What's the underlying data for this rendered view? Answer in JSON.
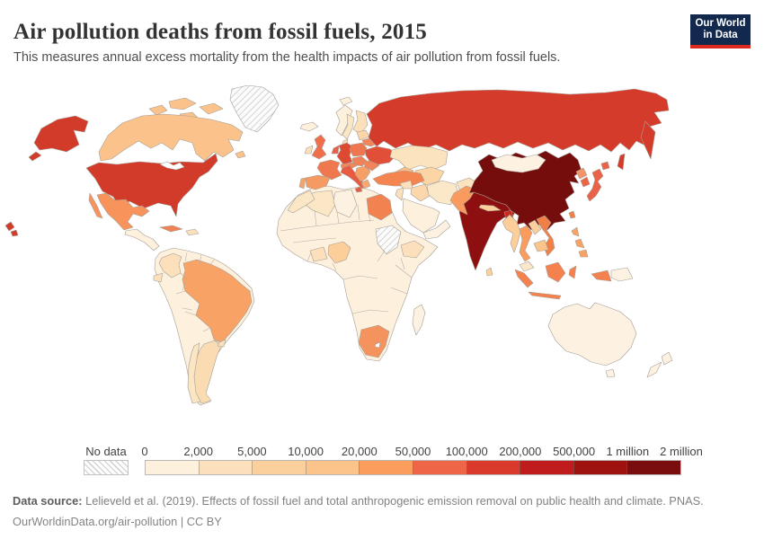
{
  "header": {
    "title": "Air pollution deaths from fossil fuels, 2015",
    "subtitle": "This measures annual excess mortality from the health impacts of air pollution from fossil fuels.",
    "logo": {
      "line1": "Our World",
      "line2": "in Data",
      "bg_color": "#12294d",
      "accent_color": "#dc2a20"
    }
  },
  "footer": {
    "source_label": "Data source:",
    "source_text": " Lelieveld et al. (2019). Effects of fossil fuel and total anthropogenic emission removal on public health and climate. PNAS.",
    "license_text": "OurWorldinData.org/air-pollution | CC BY"
  },
  "chart_data": {
    "type": "choropleth_map",
    "title": "Air pollution deaths from fossil fuels, 2015",
    "metric": "Annual excess mortality from the health impacts of air pollution from fossil fuels",
    "year": 2015,
    "unit": "deaths",
    "legend": {
      "no_data_label": "No data",
      "tick_labels": [
        "0",
        "2,000",
        "5,000",
        "10,000",
        "20,000",
        "50,000",
        "100,000",
        "200,000",
        "500,000",
        "1 million",
        "2 million"
      ],
      "bin_colors": [
        "#fdf0dd",
        "#fbe0bb",
        "#fbd09c",
        "#fcc48a",
        "#fa9d5d",
        "#ee6548",
        "#d93a2b",
        "#c01b1d",
        "#9e1310",
        "#7a0d0d"
      ],
      "no_data_pattern": "diagonal-hatch"
    },
    "countries": [
      {
        "id": "united-states",
        "name": "United States",
        "range": "100,000-200,000",
        "color": "#d23b2a"
      },
      {
        "id": "canada",
        "name": "Canada",
        "range": "10,000-20,000",
        "color": "#fbc38b"
      },
      {
        "id": "greenland",
        "name": "Greenland",
        "range": "No data",
        "color": "hatch"
      },
      {
        "id": "mexico",
        "name": "Mexico",
        "range": "20,000-50,000",
        "color": "#f9935c"
      },
      {
        "id": "central-america",
        "name": "Central America",
        "range": "0-2,000",
        "color": "#fdf0dd"
      },
      {
        "id": "cuba",
        "name": "Cuba",
        "range": "20,000-50,000",
        "color": "#f08354"
      },
      {
        "id": "hispaniola",
        "name": "Haiti and Dominican Republic",
        "range": "2,000-5,000",
        "color": "#fbe0bb"
      },
      {
        "id": "south-america-other",
        "name": "Peru, Bolivia, Venezuela, Paraguay, Guyanas",
        "range": "0-2,000",
        "color": "#fdf0dd"
      },
      {
        "id": "brazil",
        "name": "Brazil",
        "range": "20,000-50,000",
        "color": "#f9a266"
      },
      {
        "id": "argentina",
        "name": "Argentina",
        "range": "5,000-10,000",
        "color": "#fbdcb2"
      },
      {
        "id": "chile",
        "name": "Chile",
        "range": "2,000-5,000",
        "color": "#fbe6c4"
      },
      {
        "id": "uruguay",
        "name": "Uruguay",
        "range": "2,000-5,000",
        "color": "#fbe0bb"
      },
      {
        "id": "colombia",
        "name": "Colombia",
        "range": "2,000-5,000",
        "color": "#fbe0bb"
      },
      {
        "id": "ecuador",
        "name": "Ecuador",
        "range": "2,000-5,000",
        "color": "#fbe0bb"
      },
      {
        "id": "iceland",
        "name": "Iceland",
        "range": "0-2,000",
        "color": "#fdf0dd"
      },
      {
        "id": "united-kingdom",
        "name": "United Kingdom",
        "range": "50,000-100,000",
        "color": "#ef6f4d"
      },
      {
        "id": "ireland",
        "name": "Ireland",
        "range": "2,000-5,000",
        "color": "#fbe0bb"
      },
      {
        "id": "norway",
        "name": "Norway",
        "range": "0-2,000",
        "color": "#fdf0dd"
      },
      {
        "id": "sweden",
        "name": "Sweden",
        "range": "2,000-5,000",
        "color": "#fbe6c4"
      },
      {
        "id": "finland",
        "name": "Finland",
        "range": "2,000-5,000",
        "color": "#fbe0bb"
      },
      {
        "id": "denmark",
        "name": "Denmark",
        "range": "2,000-5,000",
        "color": "#fbdcb2"
      },
      {
        "id": "france",
        "name": "France",
        "range": "20,000-50,000",
        "color": "#f0784f"
      },
      {
        "id": "spain",
        "name": "Spain",
        "range": "20,000-50,000",
        "color": "#f59a62"
      },
      {
        "id": "portugal",
        "name": "Portugal",
        "range": "5,000-10,000",
        "color": "#f5a36b"
      },
      {
        "id": "germany",
        "name": "Germany",
        "range": "50,000-100,000",
        "color": "#dc4a31"
      },
      {
        "id": "benelux",
        "name": "Netherlands and Belgium",
        "range": "20,000-50,000",
        "color": "#ea5f43"
      },
      {
        "id": "italy",
        "name": "Italy",
        "range": "50,000-100,000",
        "color": "#e85b41"
      },
      {
        "id": "swiss-austria",
        "name": "Switzerland and Austria",
        "range": "10,000-20,000",
        "color": "#f4865a"
      },
      {
        "id": "poland",
        "name": "Poland",
        "range": "20,000-50,000",
        "color": "#ef764f"
      },
      {
        "id": "czech-hungary",
        "name": "Czechia, Slovakia, Hungary",
        "range": "20,000-50,000",
        "color": "#f0825a"
      },
      {
        "id": "balkans",
        "name": "Balkans",
        "range": "10,000-20,000",
        "color": "#f6a066"
      },
      {
        "id": "greece",
        "name": "Greece",
        "range": "5,000-10,000",
        "color": "#f6aa72"
      },
      {
        "id": "romania",
        "name": "Romania",
        "range": "20,000-50,000",
        "color": "#f0845a"
      },
      {
        "id": "ukraine",
        "name": "Ukraine",
        "range": "50,000-100,000",
        "color": "#e14f38"
      },
      {
        "id": "belarus",
        "name": "Belarus",
        "range": "10,000-20,000",
        "color": "#f2845c"
      },
      {
        "id": "baltics",
        "name": "Baltic states",
        "range": "5,000-10,000",
        "color": "#fbd6a8"
      },
      {
        "id": "russia",
        "name": "Russia",
        "range": "200,000-500,000",
        "color": "#d53b2b"
      },
      {
        "id": "turkey",
        "name": "Turkey",
        "range": "20,000-50,000",
        "color": "#f58550"
      },
      {
        "id": "kazakhstan",
        "name": "Kazakhstan",
        "range": "2,000-5,000",
        "color": "#fbe3bd"
      },
      {
        "id": "central-asia",
        "name": "Central Asia",
        "range": "5,000-10,000",
        "color": "#fbd6a4"
      },
      {
        "id": "caucasus",
        "name": "Caucasus",
        "range": "10,000-20,000",
        "color": "#f9c089"
      },
      {
        "id": "syria",
        "name": "Syria",
        "range": "2,000-5,000",
        "color": "#fbe0bb"
      },
      {
        "id": "iraq",
        "name": "Iraq",
        "range": "5,000-10,000",
        "color": "#fbd7ab"
      },
      {
        "id": "iran",
        "name": "Iran",
        "range": "2,000-5,000",
        "color": "#fbe8c9"
      },
      {
        "id": "israel-jordan",
        "name": "Israel and Jordan",
        "range": "2,000-5,000",
        "color": "#fbe0bb"
      },
      {
        "id": "saudi-arabia",
        "name": "Saudi Arabia",
        "range": "0-2,000",
        "color": "#fdf0dd"
      },
      {
        "id": "yemen-oman",
        "name": "Yemen and Oman",
        "range": "0-2,000",
        "color": "#fdf2e2"
      },
      {
        "id": "afghanistan",
        "name": "Afghanistan",
        "range": "2,000-5,000",
        "color": "#fbe3c0"
      },
      {
        "id": "pakistan",
        "name": "Pakistan",
        "range": "20,000-50,000",
        "color": "#f99b5e"
      },
      {
        "id": "india",
        "name": "India",
        "range": "500,000-1 million",
        "color": "#8e0f10"
      },
      {
        "id": "nepal",
        "name": "Nepal",
        "range": "5,000-10,000",
        "color": "#fbce9a"
      },
      {
        "id": "bangladesh",
        "name": "Bangladesh",
        "range": "100,000-200,000",
        "color": "#c9281f"
      },
      {
        "id": "sri-lanka",
        "name": "Sri Lanka",
        "range": "5,000-10,000",
        "color": "#fbd09c"
      },
      {
        "id": "china",
        "name": "China",
        "range": "1 million-2 million",
        "color": "#760d0d"
      },
      {
        "id": "mongolia",
        "name": "Mongolia",
        "range": "0-2,000",
        "color": "#fdf2e2"
      },
      {
        "id": "taiwan",
        "name": "Taiwan",
        "range": "20,000-50,000",
        "color": "#f08048"
      },
      {
        "id": "north-korea",
        "name": "North Korea",
        "range": "10,000-20,000",
        "color": "#f4936a"
      },
      {
        "id": "south-korea",
        "name": "South Korea",
        "range": "50,000-100,000",
        "color": "#ed6345"
      },
      {
        "id": "japan",
        "name": "Japan",
        "range": "50,000-100,000",
        "color": "#ea6248"
      },
      {
        "id": "myanmar",
        "name": "Myanmar",
        "range": "5,000-10,000",
        "color": "#fbce9a"
      },
      {
        "id": "thailand",
        "name": "Thailand",
        "range": "20,000-50,000",
        "color": "#f99c5e"
      },
      {
        "id": "laos",
        "name": "Laos",
        "range": "5,000-10,000",
        "color": "#fbd09c"
      },
      {
        "id": "vietnam",
        "name": "Vietnam",
        "range": "20,000-50,000",
        "color": "#f08048"
      },
      {
        "id": "cambodia",
        "name": "Cambodia",
        "range": "10,000-20,000",
        "color": "#fbc489"
      },
      {
        "id": "malaysia",
        "name": "Malaysia",
        "range": "2,000-5,000",
        "color": "#fbe8cc"
      },
      {
        "id": "indonesia",
        "name": "Indonesia",
        "range": "50,000-100,000",
        "color": "#f5824e"
      },
      {
        "id": "papua-new-guinea",
        "name": "Papua New Guinea",
        "range": "0-2,000",
        "color": "#fdf2e2"
      },
      {
        "id": "philippines",
        "name": "Philippines",
        "range": "20,000-50,000",
        "color": "#f9a266"
      },
      {
        "id": "africa-other",
        "name": "Sub-Saharan Africa (most countries)",
        "range": "0-2,000",
        "color": "#fdf0dd"
      },
      {
        "id": "morocco",
        "name": "Morocco",
        "range": "2,000-5,000",
        "color": "#fbe6c6"
      },
      {
        "id": "algeria",
        "name": "Algeria",
        "range": "2,000-5,000",
        "color": "#fbe6c6"
      },
      {
        "id": "libya",
        "name": "Libya",
        "range": "0-2,000",
        "color": "#fdf2e2"
      },
      {
        "id": "egypt",
        "name": "Egypt",
        "range": "20,000-50,000",
        "color": "#f28350"
      },
      {
        "id": "south-sudan",
        "name": "South Sudan",
        "range": "No data",
        "color": "hatch"
      },
      {
        "id": "nigeria",
        "name": "Nigeria",
        "range": "5,000-10,000",
        "color": "#fbce9a"
      },
      {
        "id": "ghana-cote",
        "name": "Ghana and Côte d'Ivoire",
        "range": "2,000-5,000",
        "color": "#fbe0bb"
      },
      {
        "id": "ethiopia",
        "name": "Ethiopia",
        "range": "2,000-5,000",
        "color": "#fbe0bb"
      },
      {
        "id": "south-africa",
        "name": "South Africa",
        "range": "20,000-50,000",
        "color": "#f5935f"
      },
      {
        "id": "madagascar",
        "name": "Madagascar",
        "range": "0-2,000",
        "color": "#fdf2e2"
      },
      {
        "id": "australia",
        "name": "Australia",
        "range": "0-2,000",
        "color": "#fdf2e2"
      },
      {
        "id": "new-zealand",
        "name": "New Zealand",
        "range": "0-2,000",
        "color": "#fdf2e2"
      }
    ]
  }
}
